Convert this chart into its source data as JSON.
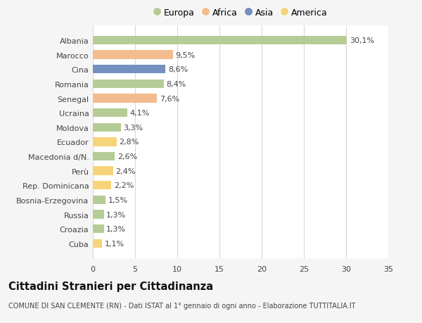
{
  "categories": [
    "Albania",
    "Marocco",
    "Cina",
    "Romania",
    "Senegal",
    "Ucraina",
    "Moldova",
    "Ecuador",
    "Macedonia d/N.",
    "Perù",
    "Rep. Dominicana",
    "Bosnia-Erzegovina",
    "Russia",
    "Croazia",
    "Cuba"
  ],
  "values": [
    30.1,
    9.5,
    8.6,
    8.4,
    7.6,
    4.1,
    3.3,
    2.8,
    2.6,
    2.4,
    2.2,
    1.5,
    1.3,
    1.3,
    1.1
  ],
  "labels": [
    "30,1%",
    "9,5%",
    "8,6%",
    "8,4%",
    "7,6%",
    "4,1%",
    "3,3%",
    "2,8%",
    "2,6%",
    "2,4%",
    "2,2%",
    "1,5%",
    "1,3%",
    "1,3%",
    "1,1%"
  ],
  "colors": [
    "#b5cc96",
    "#f2bc8e",
    "#7390bf",
    "#b5cc96",
    "#f2bc8e",
    "#b5cc96",
    "#b5cc96",
    "#f5d47a",
    "#b5cc96",
    "#f5d47a",
    "#f5d47a",
    "#b5cc96",
    "#b5cc96",
    "#b5cc96",
    "#f5d47a"
  ],
  "legend_labels": [
    "Europa",
    "Africa",
    "Asia",
    "America"
  ],
  "legend_colors": [
    "#b5cc96",
    "#f2bc8e",
    "#7390bf",
    "#f5d47a"
  ],
  "xlim": [
    0,
    35
  ],
  "xticks": [
    0,
    5,
    10,
    15,
    20,
    25,
    30,
    35
  ],
  "title": "Cittadini Stranieri per Cittadinanza",
  "subtitle": "COMUNE DI SAN CLEMENTE (RN) - Dati ISTAT al 1° gennaio di ogni anno - Elaborazione TUTTITALIA.IT",
  "background_color": "#f5f5f5",
  "plot_bg_color": "#ffffff",
  "grid_color": "#d8d8d8",
  "label_fontsize": 8.0,
  "value_fontsize": 8.0,
  "title_fontsize": 10.5,
  "subtitle_fontsize": 7.0
}
